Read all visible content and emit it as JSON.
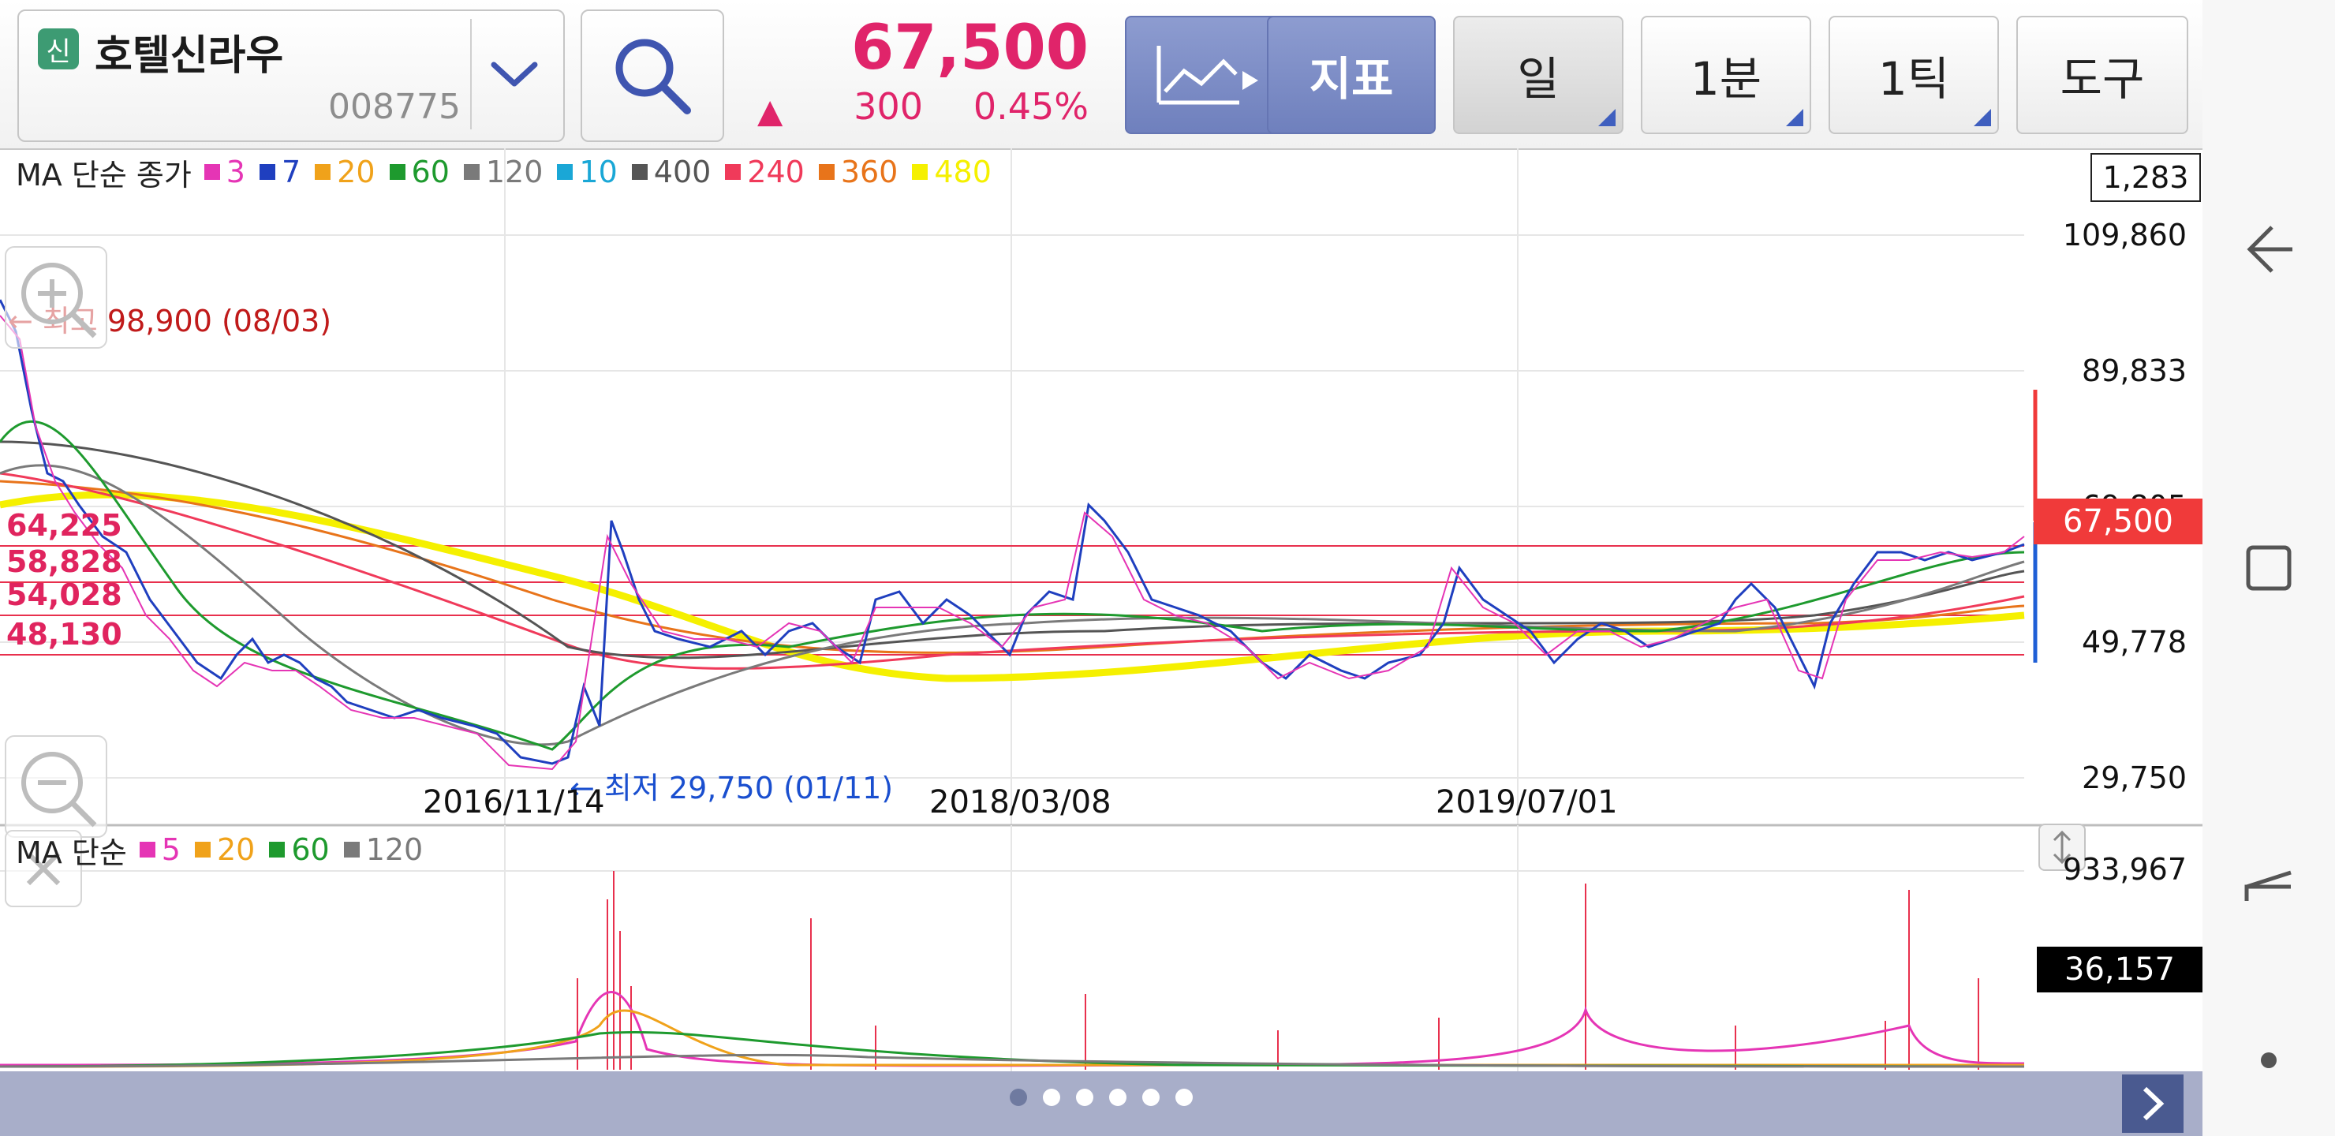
{
  "stock": {
    "credit_badge": "신",
    "name": "호텔신라우",
    "code": "008775",
    "price": "67,500",
    "change_arrow": "▲",
    "change": "300",
    "change_pct": "0.45%"
  },
  "toolbar": {
    "chart_type_icon": "line-chart-icon",
    "indicator_label": "지표",
    "period_label": "일",
    "minute_label": "1분",
    "tick_label": "1틱",
    "tools_label": "도구"
  },
  "ma_legend": {
    "label": "MA 단순 종가",
    "items": [
      {
        "label": "3",
        "color": "#e535b5"
      },
      {
        "label": "7",
        "color": "#1f3fbf"
      },
      {
        "label": "20",
        "color": "#f0a21a"
      },
      {
        "label": "60",
        "color": "#1e9a2e"
      },
      {
        "label": "120",
        "color": "#7a7a7a"
      },
      {
        "label": "10",
        "color": "#1aa7d6"
      },
      {
        "label": "400",
        "color": "#555555"
      },
      {
        "label": "240",
        "color": "#f03a5a"
      },
      {
        "label": "360",
        "color": "#e8741a"
      },
      {
        "label": "480",
        "color": "#f5f000"
      }
    ]
  },
  "price_chart": {
    "box_value": "1,283",
    "y_labels": [
      "109,860",
      "89,833",
      "69,805",
      "49,778",
      "29,750"
    ],
    "current_price_tag": "67,500",
    "fib_levels": [
      "64,225",
      "58,828",
      "54,028",
      "48,130"
    ],
    "high_note": "← 최고 98,900 (08/03)",
    "low_note": "← 최저 29,750 (01/11)",
    "x_labels": [
      "2016/11/14",
      "2018/03/08",
      "2019/07/01"
    ]
  },
  "volume_chart": {
    "label": "MA 단순",
    "items": [
      {
        "label": "5",
        "color": "#e535b5"
      },
      {
        "label": "20",
        "color": "#f0a21a"
      },
      {
        "label": "60",
        "color": "#1e9a2e"
      },
      {
        "label": "120",
        "color": "#7a7a7a"
      }
    ],
    "y_max": "933,967",
    "current_tag": "36,157"
  },
  "pager": {
    "pages": 6,
    "active": 0
  },
  "colors": {
    "up": "#e0246a",
    "down": "#1a4fcf",
    "accent_button": "#7b8bc6",
    "price_tag": "#f03a3a"
  }
}
